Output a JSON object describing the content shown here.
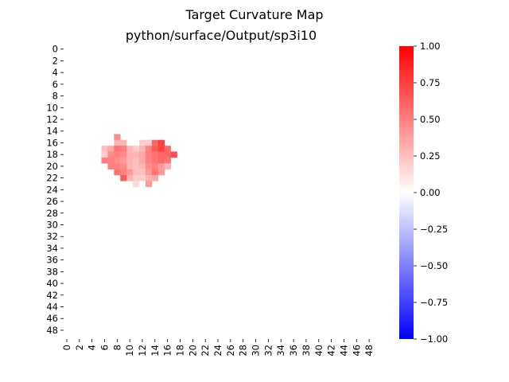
{
  "chart_data": {
    "type": "heatmap",
    "title": "Target Curvature Map",
    "subtitle": "python/surface/Output/sp3i10",
    "xlabel": "",
    "ylabel": "",
    "rows": 50,
    "cols": 50,
    "x_ticks": [
      "0",
      "2",
      "4",
      "6",
      "8",
      "10",
      "12",
      "14",
      "16",
      "18",
      "20",
      "22",
      "24",
      "26",
      "28",
      "30",
      "32",
      "34",
      "36",
      "38",
      "40",
      "42",
      "44",
      "46",
      "48"
    ],
    "y_ticks": [
      "0",
      "2",
      "4",
      "6",
      "8",
      "10",
      "12",
      "14",
      "16",
      "18",
      "20",
      "22",
      "24",
      "26",
      "28",
      "30",
      "32",
      "34",
      "36",
      "38",
      "40",
      "42",
      "44",
      "46",
      "48"
    ],
    "colorbar": {
      "colormap": "bwr",
      "vmin": -1.0,
      "vmax": 1.0,
      "ticks": [
        "1.00",
        "0.75",
        "0.50",
        "0.25",
        "0.00",
        "−0.25",
        "−0.50",
        "−0.75",
        "−1.00"
      ],
      "colors": {
        "low": "#0000ff",
        "mid": "#ffffff",
        "high": "#ff0000"
      }
    },
    "default_value": 0.0,
    "nonzero_cells": [
      {
        "row": 15,
        "col": 8,
        "value": 0.45
      },
      {
        "row": 16,
        "col": 8,
        "value": 0.3
      },
      {
        "row": 16,
        "col": 9,
        "value": 0.3
      },
      {
        "row": 16,
        "col": 12,
        "value": 0.2
      },
      {
        "row": 16,
        "col": 13,
        "value": 0.2
      },
      {
        "row": 16,
        "col": 14,
        "value": 0.6
      },
      {
        "row": 16,
        "col": 15,
        "value": 0.75
      },
      {
        "row": 17,
        "col": 6,
        "value": 0.25
      },
      {
        "row": 17,
        "col": 7,
        "value": 0.35
      },
      {
        "row": 17,
        "col": 8,
        "value": 0.55
      },
      {
        "row": 17,
        "col": 9,
        "value": 0.5
      },
      {
        "row": 17,
        "col": 10,
        "value": 0.3
      },
      {
        "row": 17,
        "col": 11,
        "value": 0.2
      },
      {
        "row": 17,
        "col": 12,
        "value": 0.3
      },
      {
        "row": 17,
        "col": 13,
        "value": 0.5
      },
      {
        "row": 17,
        "col": 14,
        "value": 0.65
      },
      {
        "row": 17,
        "col": 15,
        "value": 0.75
      },
      {
        "row": 17,
        "col": 16,
        "value": 0.6
      },
      {
        "row": 18,
        "col": 6,
        "value": 0.2
      },
      {
        "row": 18,
        "col": 7,
        "value": 0.45
      },
      {
        "row": 18,
        "col": 8,
        "value": 0.5
      },
      {
        "row": 18,
        "col": 9,
        "value": 0.45
      },
      {
        "row": 18,
        "col": 10,
        "value": 0.3
      },
      {
        "row": 18,
        "col": 11,
        "value": 0.3
      },
      {
        "row": 18,
        "col": 12,
        "value": 0.35
      },
      {
        "row": 18,
        "col": 13,
        "value": 0.5
      },
      {
        "row": 18,
        "col": 14,
        "value": 0.55
      },
      {
        "row": 18,
        "col": 15,
        "value": 0.6
      },
      {
        "row": 18,
        "col": 16,
        "value": 0.6
      },
      {
        "row": 18,
        "col": 17,
        "value": 0.7
      },
      {
        "row": 19,
        "col": 6,
        "value": 0.5
      },
      {
        "row": 19,
        "col": 7,
        "value": 0.5
      },
      {
        "row": 19,
        "col": 8,
        "value": 0.45
      },
      {
        "row": 19,
        "col": 9,
        "value": 0.4
      },
      {
        "row": 19,
        "col": 10,
        "value": 0.3
      },
      {
        "row": 19,
        "col": 11,
        "value": 0.25
      },
      {
        "row": 19,
        "col": 12,
        "value": 0.35
      },
      {
        "row": 19,
        "col": 13,
        "value": 0.5
      },
      {
        "row": 19,
        "col": 14,
        "value": 0.55
      },
      {
        "row": 19,
        "col": 15,
        "value": 0.6
      },
      {
        "row": 19,
        "col": 16,
        "value": 0.55
      },
      {
        "row": 20,
        "col": 7,
        "value": 0.5
      },
      {
        "row": 20,
        "col": 8,
        "value": 0.5
      },
      {
        "row": 20,
        "col": 9,
        "value": 0.45
      },
      {
        "row": 20,
        "col": 10,
        "value": 0.3
      },
      {
        "row": 20,
        "col": 11,
        "value": 0.25
      },
      {
        "row": 20,
        "col": 12,
        "value": 0.3
      },
      {
        "row": 20,
        "col": 13,
        "value": 0.45
      },
      {
        "row": 20,
        "col": 14,
        "value": 0.5
      },
      {
        "row": 20,
        "col": 15,
        "value": 0.4
      },
      {
        "row": 20,
        "col": 16,
        "value": 0.3
      },
      {
        "row": 21,
        "col": 8,
        "value": 0.55
      },
      {
        "row": 21,
        "col": 9,
        "value": 0.5
      },
      {
        "row": 21,
        "col": 10,
        "value": 0.4
      },
      {
        "row": 21,
        "col": 11,
        "value": 0.25
      },
      {
        "row": 21,
        "col": 12,
        "value": 0.25
      },
      {
        "row": 21,
        "col": 13,
        "value": 0.4
      },
      {
        "row": 21,
        "col": 14,
        "value": 0.55
      },
      {
        "row": 21,
        "col": 15,
        "value": 0.4
      },
      {
        "row": 22,
        "col": 9,
        "value": 0.65
      },
      {
        "row": 22,
        "col": 10,
        "value": 0.3
      },
      {
        "row": 22,
        "col": 11,
        "value": 0.2
      },
      {
        "row": 22,
        "col": 12,
        "value": 0.2
      },
      {
        "row": 22,
        "col": 13,
        "value": 0.3
      },
      {
        "row": 22,
        "col": 14,
        "value": 0.35
      },
      {
        "row": 23,
        "col": 11,
        "value": 0.15
      },
      {
        "row": 23,
        "col": 13,
        "value": 0.4
      }
    ]
  }
}
